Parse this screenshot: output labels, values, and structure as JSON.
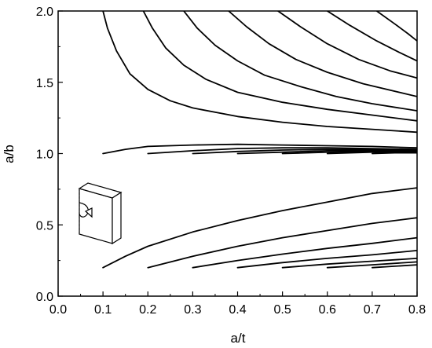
{
  "chart_data": {
    "type": "line",
    "title": "",
    "xlabel": "a/t",
    "ylabel": "a/b",
    "xlim": [
      0.0,
      0.8
    ],
    "ylim": [
      0.0,
      2.0
    ],
    "xticks": [
      "0.0",
      "0.1",
      "0.2",
      "0.3",
      "0.4",
      "0.5",
      "0.6",
      "0.7",
      "0.8"
    ],
    "yticks": [
      "0.0",
      "0.5",
      "1.0",
      "1.5",
      "2.0"
    ],
    "grid": false,
    "legend": "none",
    "line_color": "#000000",
    "inset": "specimen-with-corner-crack-icon",
    "series": [
      {
        "x": [
          0.1,
          0.11,
          0.13,
          0.16,
          0.2,
          0.25,
          0.3,
          0.4,
          0.5,
          0.6,
          0.7,
          0.8
        ],
        "y": [
          2.0,
          1.88,
          1.72,
          1.56,
          1.45,
          1.37,
          1.32,
          1.26,
          1.22,
          1.19,
          1.17,
          1.15
        ]
      },
      {
        "x": [
          0.19,
          0.21,
          0.24,
          0.28,
          0.33,
          0.4,
          0.5,
          0.6,
          0.7,
          0.8
        ],
        "y": [
          2.0,
          1.88,
          1.74,
          1.62,
          1.52,
          1.43,
          1.36,
          1.31,
          1.27,
          1.23
        ]
      },
      {
        "x": [
          0.28,
          0.31,
          0.35,
          0.4,
          0.46,
          0.54,
          0.62,
          0.7,
          0.8
        ],
        "y": [
          2.0,
          1.88,
          1.76,
          1.65,
          1.55,
          1.47,
          1.4,
          1.35,
          1.3
        ]
      },
      {
        "x": [
          0.38,
          0.42,
          0.47,
          0.53,
          0.6,
          0.68,
          0.8
        ],
        "y": [
          2.0,
          1.89,
          1.77,
          1.66,
          1.57,
          1.49,
          1.4
        ]
      },
      {
        "x": [
          0.49,
          0.54,
          0.6,
          0.67,
          0.74,
          0.8
        ],
        "y": [
          2.0,
          1.89,
          1.77,
          1.66,
          1.58,
          1.53
        ]
      },
      {
        "x": [
          0.6,
          0.65,
          0.71,
          0.76,
          0.8
        ],
        "y": [
          2.0,
          1.9,
          1.79,
          1.71,
          1.65
        ]
      },
      {
        "x": [
          0.71,
          0.75,
          0.78,
          0.8
        ],
        "y": [
          2.0,
          1.91,
          1.84,
          1.79
        ]
      },
      {
        "x": [
          0.1,
          0.15,
          0.2,
          0.3,
          0.4,
          0.5,
          0.6,
          0.7,
          0.8
        ],
        "y": [
          1.0,
          1.03,
          1.05,
          1.06,
          1.065,
          1.06,
          1.055,
          1.05,
          1.04
        ]
      },
      {
        "x": [
          0.2,
          0.3,
          0.4,
          0.5,
          0.6,
          0.7,
          0.8
        ],
        "y": [
          1.0,
          1.02,
          1.035,
          1.04,
          1.04,
          1.035,
          1.03
        ]
      },
      {
        "x": [
          0.3,
          0.4,
          0.5,
          0.6,
          0.7,
          0.8
        ],
        "y": [
          1.0,
          1.015,
          1.025,
          1.03,
          1.03,
          1.025
        ]
      },
      {
        "x": [
          0.4,
          0.5,
          0.6,
          0.7,
          0.8
        ],
        "y": [
          1.0,
          1.01,
          1.02,
          1.02,
          1.02
        ]
      },
      {
        "x": [
          0.5,
          0.6,
          0.7,
          0.8
        ],
        "y": [
          1.0,
          1.01,
          1.015,
          1.015
        ]
      },
      {
        "x": [
          0.6,
          0.7,
          0.8
        ],
        "y": [
          1.0,
          1.01,
          1.01
        ]
      },
      {
        "x": [
          0.7,
          0.75,
          0.8
        ],
        "y": [
          1.0,
          1.005,
          1.005
        ]
      },
      {
        "x": [
          0.1,
          0.15,
          0.2,
          0.3,
          0.4,
          0.5,
          0.6,
          0.7,
          0.8
        ],
        "y": [
          0.2,
          0.28,
          0.35,
          0.45,
          0.53,
          0.6,
          0.66,
          0.72,
          0.76
        ]
      },
      {
        "x": [
          0.2,
          0.3,
          0.4,
          0.5,
          0.6,
          0.7,
          0.8
        ],
        "y": [
          0.2,
          0.28,
          0.35,
          0.41,
          0.46,
          0.51,
          0.55
        ]
      },
      {
        "x": [
          0.3,
          0.4,
          0.5,
          0.6,
          0.7,
          0.8
        ],
        "y": [
          0.2,
          0.25,
          0.295,
          0.335,
          0.37,
          0.41
        ]
      },
      {
        "x": [
          0.4,
          0.5,
          0.6,
          0.7,
          0.8
        ],
        "y": [
          0.2,
          0.235,
          0.265,
          0.29,
          0.32
        ]
      },
      {
        "x": [
          0.5,
          0.6,
          0.7,
          0.8
        ],
        "y": [
          0.2,
          0.225,
          0.245,
          0.265
        ]
      },
      {
        "x": [
          0.6,
          0.7,
          0.8
        ],
        "y": [
          0.2,
          0.22,
          0.24
        ]
      },
      {
        "x": [
          0.7,
          0.75,
          0.8
        ],
        "y": [
          0.2,
          0.21,
          0.22
        ]
      }
    ]
  }
}
